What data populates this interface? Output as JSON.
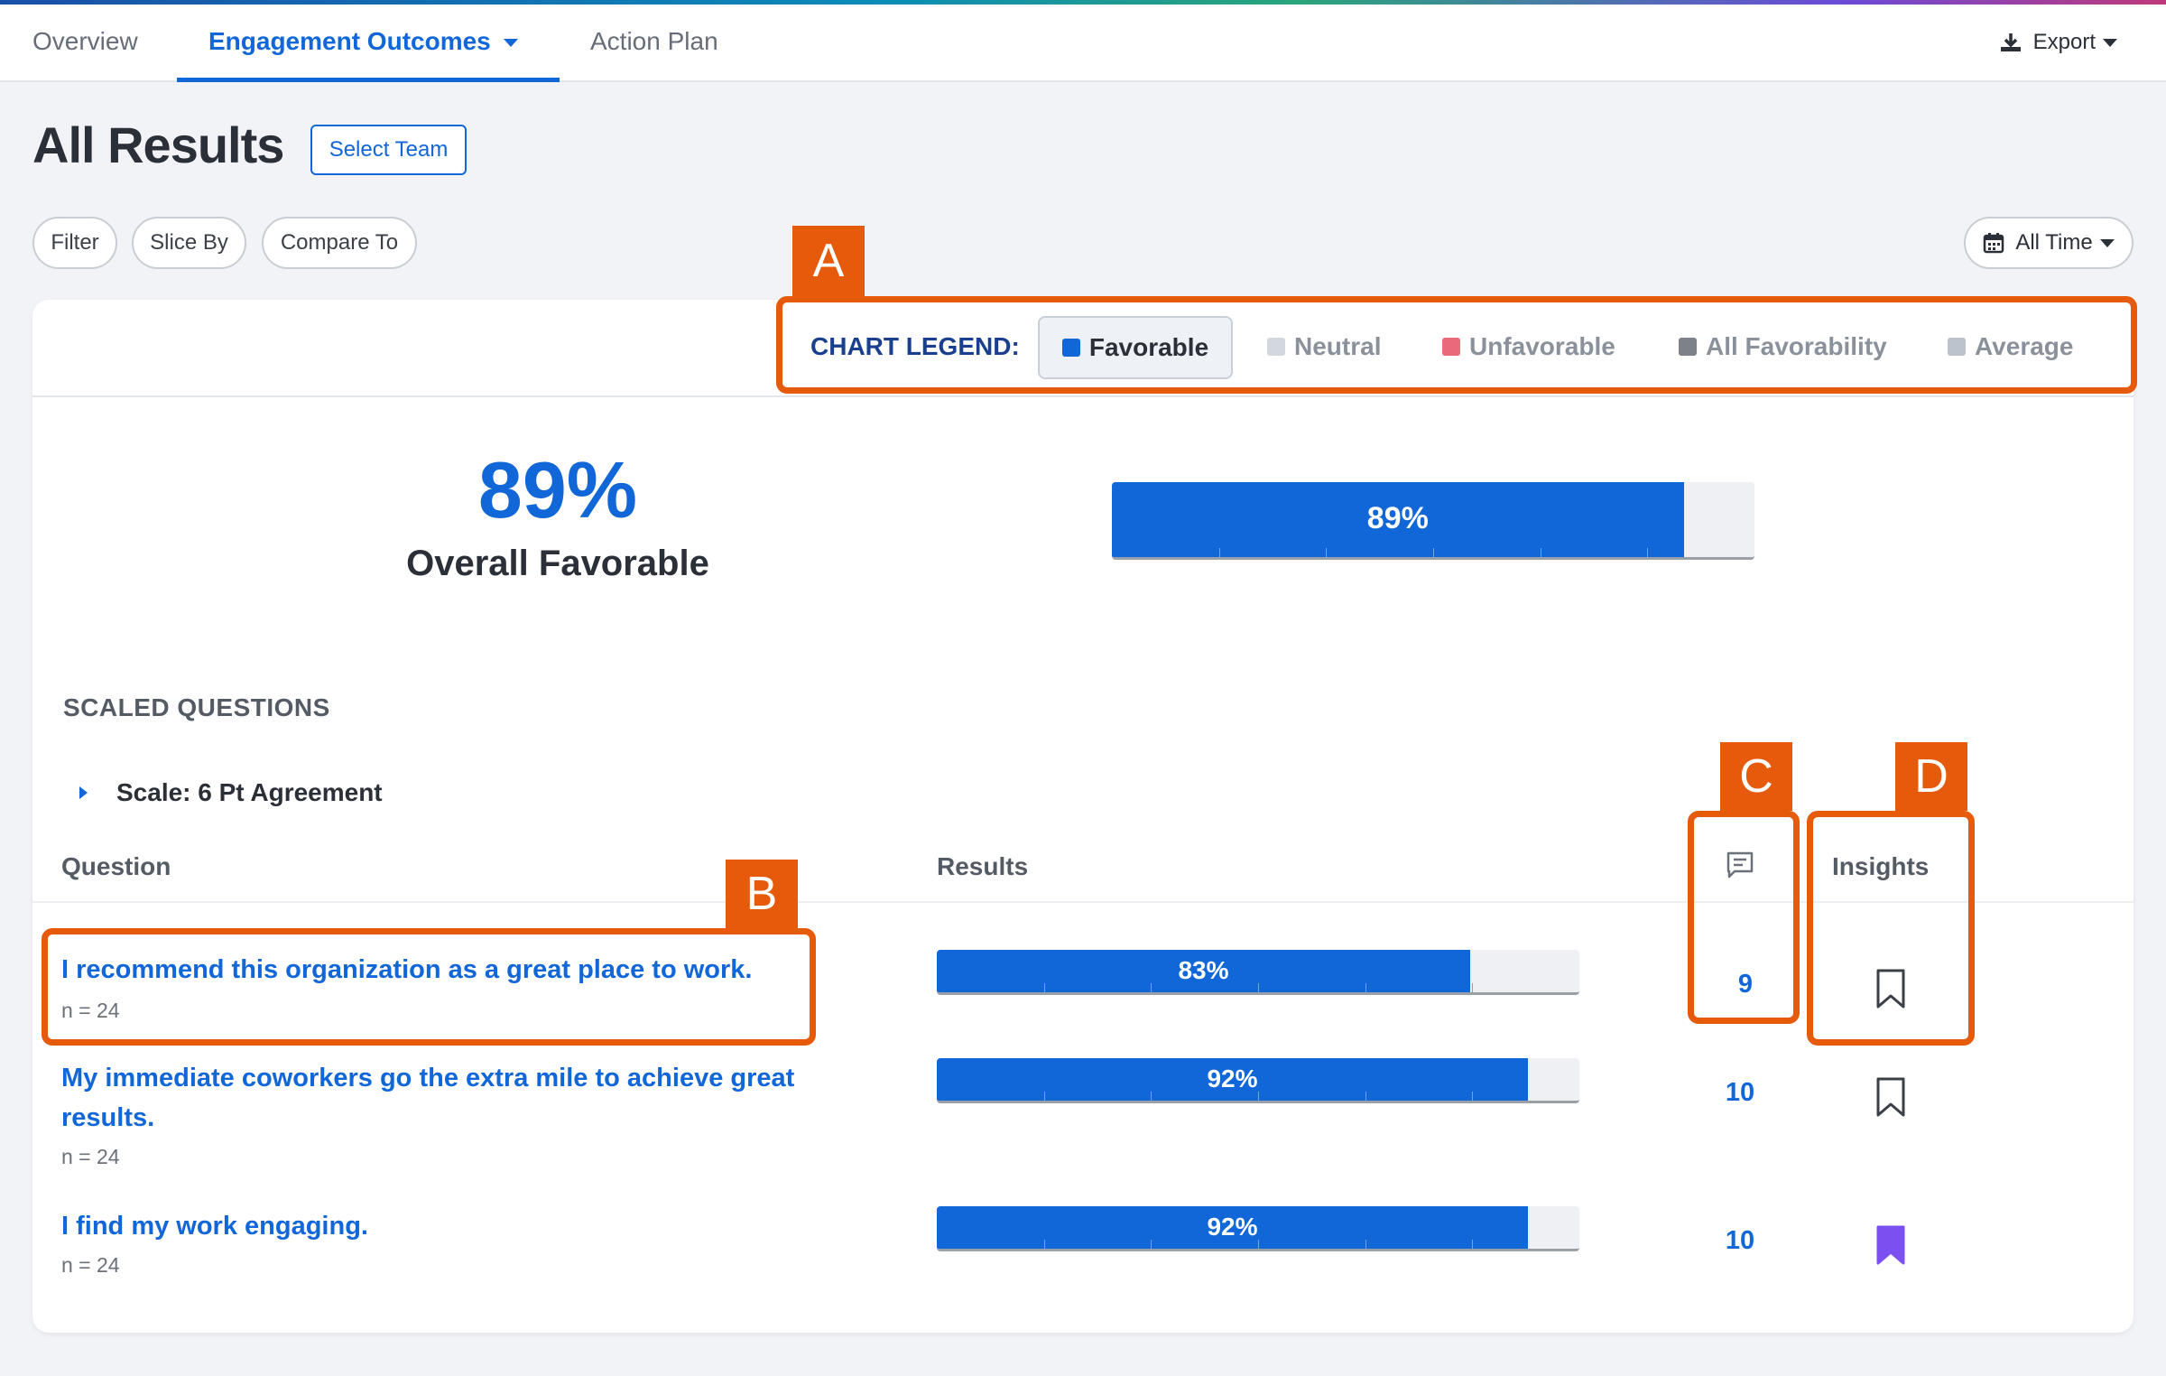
{
  "nav": {
    "tabs": [
      {
        "label": "Overview"
      },
      {
        "label": "Engagement Outcomes"
      },
      {
        "label": "Action Plan"
      }
    ],
    "export_label": "Export"
  },
  "page": {
    "title": "All Results",
    "select_team": "Select Team"
  },
  "filters": {
    "filter": "Filter",
    "slice_by": "Slice By",
    "compare_to": "Compare To",
    "date_range": "All Time"
  },
  "legend": {
    "label": "CHART LEGEND:",
    "items": [
      {
        "label": "Favorable",
        "color": "#1166d8"
      },
      {
        "label": "Neutral",
        "color": "#d3d7de"
      },
      {
        "label": "Unfavorable",
        "color": "#ea6a7a"
      },
      {
        "label": "All Favorability",
        "color": "#7d828a"
      },
      {
        "label": "Average",
        "color": "#bcc3cd"
      }
    ]
  },
  "overall": {
    "value": "89%",
    "label": "Overall Favorable",
    "favorable_fraction": 0.89,
    "bar_label": "89%"
  },
  "section": {
    "heading": "SCALED QUESTIONS",
    "scale": "Scale: 6 Pt Agreement",
    "col_question": "Question",
    "col_results": "Results",
    "col_insights": "Insights"
  },
  "questions": [
    {
      "text": "I recommend this organization as a great place to work.",
      "n": "n = 24",
      "result": "83%",
      "fraction": 0.83,
      "comments": "9",
      "bookmarked": false
    },
    {
      "text": "My immediate coworkers go the extra mile to achieve great results.",
      "n": "n = 24",
      "result": "92%",
      "fraction": 0.92,
      "comments": "10",
      "bookmarked": false
    },
    {
      "text": "I find my work engaging.",
      "n": "n = 24",
      "result": "92%",
      "fraction": 0.92,
      "comments": "10",
      "bookmarked": true
    }
  ],
  "annotations": {
    "a": "A",
    "b": "B",
    "c": "C",
    "d": "D"
  },
  "colors": {
    "accent": "#1166d8",
    "annotation": "#e65a0b",
    "bookmark_active": "#7b4ff0"
  }
}
